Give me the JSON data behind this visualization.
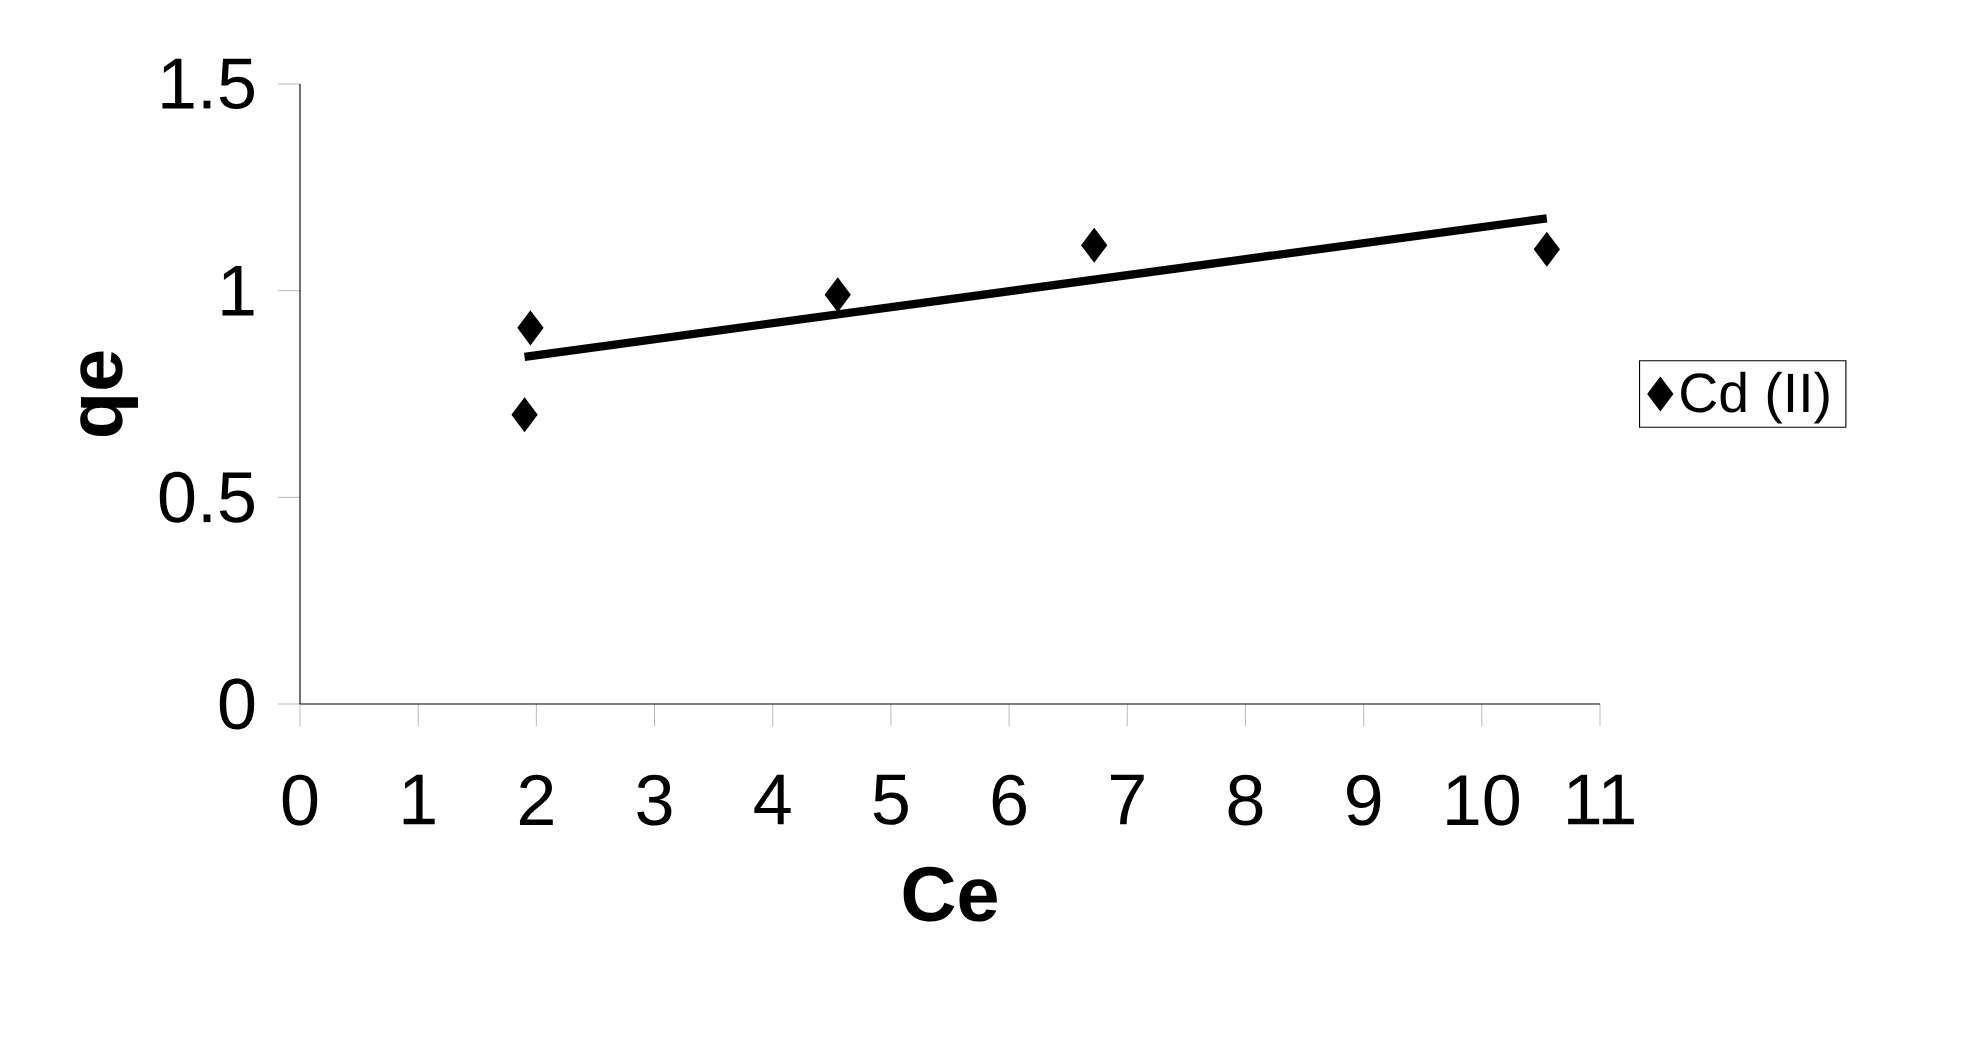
{
  "chart_data": {
    "type": "scatter",
    "xlabel": "Ce",
    "ylabel": "qe",
    "series": [
      {
        "name": "Cd (II)",
        "color": "#000000",
        "marker": "diamond",
        "x": [
          1.9,
          1.95,
          4.55,
          6.72,
          10.55
        ],
        "values": [
          0.7,
          0.91,
          0.99,
          1.11,
          1.1
        ]
      },
      {
        "type": "line",
        "color": "#000000",
        "marker": "none",
        "line_style": "solid",
        "x": [
          1.9,
          10.55
        ],
        "values": [
          0.84,
          1.175
        ]
      }
    ],
    "xlim": [
      0,
      11
    ],
    "ylim": [
      0,
      1.5
    ],
    "xticks": [
      0,
      1,
      2,
      3,
      4,
      5,
      6,
      7,
      8,
      9,
      10,
      11
    ],
    "yticks": [
      0,
      0.5,
      1,
      1.5
    ],
    "grid": false,
    "legend": "right"
  }
}
